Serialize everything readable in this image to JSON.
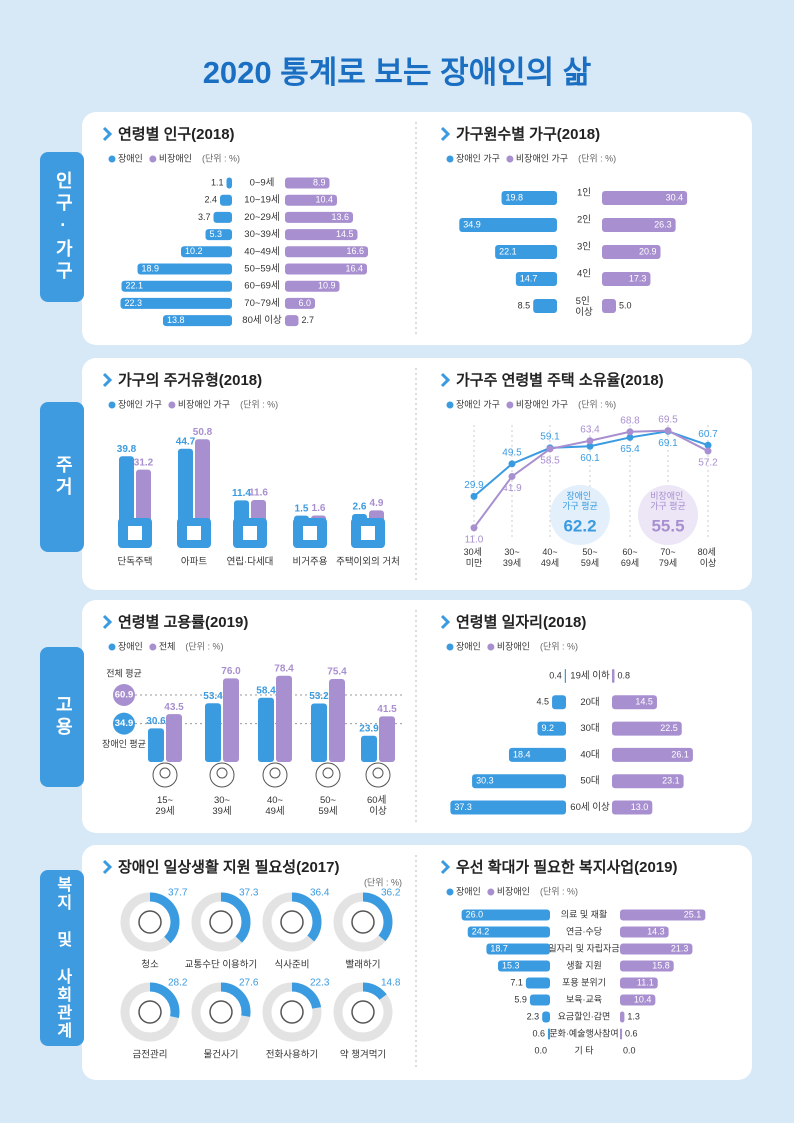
{
  "title": "2020 통계로 보는 장애인의 삶",
  "sections": [
    "인구·가구",
    "주거",
    "고용",
    "복지 및 사회관계"
  ],
  "chart_data": [
    {
      "type": "butterfly",
      "title": "연령별 인구(2018)",
      "unit": "(단위 : %)",
      "categories": [
        "0~9세",
        "10~19세",
        "20~29세",
        "30~39세",
        "40~49세",
        "50~59세",
        "60~69세",
        "70~79세",
        "80세 이상"
      ],
      "series": [
        {
          "name": "장애인",
          "color": "#3b9be0",
          "values": [
            1.1,
            2.4,
            3.7,
            5.3,
            10.2,
            18.9,
            22.1,
            22.3,
            13.8
          ]
        },
        {
          "name": "비장애인",
          "color": "#a88fd0",
          "values": [
            8.9,
            10.4,
            13.6,
            14.5,
            16.6,
            16.4,
            10.9,
            6,
            2.7
          ],
          "value_labels": [
            "8.9",
            "10.4",
            "13.6",
            "14.5",
            "16.6",
            "16.4",
            "10.9",
            "6.0",
            "2.7"
          ]
        }
      ]
    },
    {
      "type": "butterfly",
      "title": "가구원수별 가구(2018)",
      "unit": "(단위 : %)",
      "categories": [
        "1인",
        "2인",
        "3인",
        "4인",
        "5인 이상"
      ],
      "series": [
        {
          "name": "장애인 가구",
          "color": "#3b9be0",
          "values": [
            19.8,
            34.9,
            22.1,
            14.7,
            8.5
          ]
        },
        {
          "name": "비장애인 가구",
          "color": "#a88fd0",
          "values": [
            30.4,
            26.3,
            20.9,
            17.3,
            5
          ],
          "value_labels": [
            "30.4",
            "26.3",
            "20.9",
            "17.3",
            "5.0"
          ]
        }
      ]
    },
    {
      "type": "bar",
      "title": "가구의 주거유형(2018)",
      "unit": "(단위 : %)",
      "categories": [
        "단독주택",
        "아파트",
        "연립·다세대",
        "비거주용",
        "주택이외의 거처"
      ],
      "series": [
        {
          "name": "장애인 가구",
          "color": "#3b9be0",
          "values": [
            39.8,
            44.7,
            11.4,
            1.5,
            2.6
          ]
        },
        {
          "name": "비장애인 가구",
          "color": "#a88fd0",
          "values": [
            31.2,
            50.8,
            11.6,
            1.6,
            4.9
          ]
        }
      ]
    },
    {
      "type": "line",
      "title": "가구주 연령별 주택 소유율(2018)",
      "unit": "(단위 : %)",
      "categories": [
        "30세 미만",
        "30~39세",
        "40~49세",
        "50~59세",
        "60~69세",
        "70~79세",
        "80세 이상"
      ],
      "series": [
        {
          "name": "장애인 가구",
          "color": "#3b9be0",
          "values": [
            29.9,
            49.5,
            59.1,
            60.1,
            65.4,
            69.1,
            60.7
          ]
        },
        {
          "name": "비장애인 가구",
          "color": "#a88fd0",
          "values": [
            11,
            41.9,
            58.5,
            63.4,
            68.8,
            69.5,
            57.2
          ],
          "value_labels": [
            "11.0",
            "41.9",
            "58.5",
            "63.4",
            "68.8",
            "69.5",
            "57.2"
          ]
        }
      ],
      "averages": [
        {
          "label": "장애인 가구 평균",
          "value": 62.2,
          "color": "#3b9be0"
        },
        {
          "label": "비장애인 가구 평균",
          "value": 55.5,
          "color": "#a88fd0"
        }
      ]
    },
    {
      "type": "bar",
      "title": "연령별 고용률(2019)",
      "unit": "(단위 : %)",
      "categories": [
        "15~29세",
        "30~39세",
        "40~49세",
        "50~59세",
        "60세 이상"
      ],
      "series": [
        {
          "name": "장애인",
          "color": "#3b9be0",
          "values": [
            30.6,
            53.4,
            58.4,
            53.2,
            23.9
          ]
        },
        {
          "name": "전체",
          "color": "#a88fd0",
          "values": [
            43.5,
            76,
            78.4,
            75.4,
            41.5
          ],
          "value_labels": [
            "43.5",
            "76.0",
            "78.4",
            "75.4",
            "41.5"
          ]
        }
      ],
      "references": [
        {
          "label": "전체 평균",
          "value": 60.9,
          "color": "#a88fd0"
        },
        {
          "label": "장애인 평균",
          "value": 34.9,
          "color": "#3b9be0"
        }
      ]
    },
    {
      "type": "butterfly",
      "title": "연령별 일자리(2018)",
      "unit": "(단위 : %)",
      "categories": [
        "19세 이하",
        "20대",
        "30대",
        "40대",
        "50대",
        "60세 이상"
      ],
      "series": [
        {
          "name": "장애인",
          "color": "#3b9be0",
          "values": [
            0.4,
            4.5,
            9.2,
            18.4,
            30.3,
            37.3
          ]
        },
        {
          "name": "비장애인",
          "color": "#a88fd0",
          "values": [
            0.8,
            14.5,
            22.5,
            26.1,
            23.1,
            13
          ],
          "value_labels": [
            "0.8",
            "14.5",
            "22.5",
            "26.1",
            "23.1",
            "13.0"
          ]
        }
      ]
    },
    {
      "type": "donut",
      "title": "장애인 일상생활 지원 필요성(2017)",
      "unit": "(단위 : %)",
      "color": "#3b9be0",
      "categories": [
        "청소",
        "교통수단 이용하기",
        "식사준비",
        "빨래하기",
        "금전관리",
        "물건사기",
        "전화사용하기",
        "약 챙겨먹기"
      ],
      "values": [
        37.7,
        37.3,
        36.4,
        36.2,
        28.2,
        27.6,
        22.3,
        14.8
      ]
    },
    {
      "type": "butterfly",
      "title": "우선 확대가 필요한 복지사업(2019)",
      "unit": "(단위 : %)",
      "categories": [
        "의료 및 재활",
        "연금·수당",
        "일자리 및 자립자금",
        "생활 지원",
        "포용 분위기",
        "보육·교육",
        "요금할인·감면",
        "문화·예술행사참여",
        "기 타"
      ],
      "series": [
        {
          "name": "장애인",
          "color": "#3b9be0",
          "values": [
            26,
            24.2,
            18.7,
            15.3,
            7.1,
            5.9,
            2.3,
            0.6,
            0
          ],
          "value_labels": [
            "26.0",
            "24.2",
            "18.7",
            "15.3",
            "7.1",
            "5.9",
            "2.3",
            "0.6",
            "0.0"
          ]
        },
        {
          "name": "비장애인",
          "color": "#a88fd0",
          "values": [
            25.1,
            14.3,
            21.3,
            15.8,
            11.1,
            10.4,
            1.3,
            0.6,
            0
          ],
          "value_labels": [
            "25.1",
            "14.3",
            "21.3",
            "15.8",
            "11.1",
            "10.4",
            "1.3",
            "0.6",
            "0.0"
          ]
        }
      ]
    }
  ]
}
